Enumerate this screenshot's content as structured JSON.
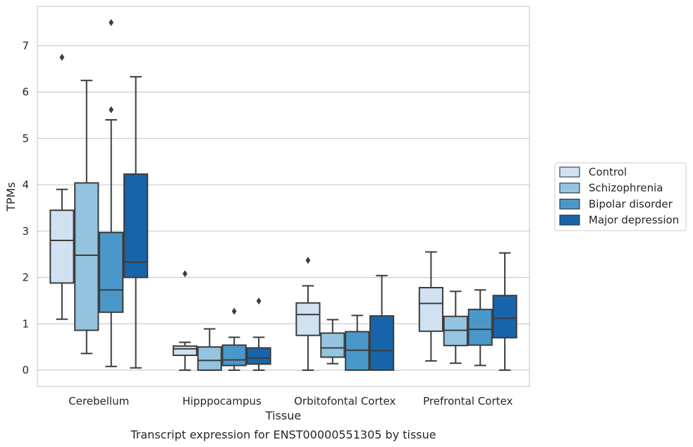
{
  "caption": "Transcript expression for ENST00000551305 by tissue",
  "chart_data": {
    "type": "boxplot",
    "xlabel": "Tissue",
    "ylabel": "TPMs",
    "ylim": [
      -0.35,
      7.85
    ],
    "yticks": [
      0,
      1,
      2,
      3,
      4,
      5,
      6,
      7
    ],
    "grid": "horizontal",
    "legend_position": "right",
    "categories": [
      "Cerebellum",
      "Hipppocampus",
      "Orbitofontal Cortex",
      "Prefrontal Cortex"
    ],
    "series": [
      {
        "name": "Control",
        "color": "#d0e1f2",
        "boxes": [
          {
            "whisker_low": 1.1,
            "q1": 1.88,
            "median": 2.8,
            "q3": 3.45,
            "whisker_high": 3.9,
            "outliers": [
              6.75
            ]
          },
          {
            "whisker_low": 0.0,
            "q1": 0.32,
            "median": 0.46,
            "q3": 0.52,
            "whisker_high": 0.6,
            "outliers": [
              2.08
            ]
          },
          {
            "whisker_low": 0.0,
            "q1": 0.75,
            "median": 1.2,
            "q3": 1.45,
            "whisker_high": 1.82,
            "outliers": [
              2.37
            ]
          },
          {
            "whisker_low": 0.2,
            "q1": 0.84,
            "median": 1.44,
            "q3": 1.78,
            "whisker_high": 2.55,
            "outliers": []
          }
        ]
      },
      {
        "name": "Schizophrenia",
        "color": "#94c4df",
        "boxes": [
          {
            "whisker_low": 0.36,
            "q1": 0.86,
            "median": 2.48,
            "q3": 4.04,
            "whisker_high": 6.25,
            "outliers": []
          },
          {
            "whisker_low": 0.0,
            "q1": 0.0,
            "median": 0.21,
            "q3": 0.5,
            "whisker_high": 0.89,
            "outliers": []
          },
          {
            "whisker_low": 0.14,
            "q1": 0.28,
            "median": 0.48,
            "q3": 0.8,
            "whisker_high": 1.09,
            "outliers": []
          },
          {
            "whisker_low": 0.15,
            "q1": 0.53,
            "median": 0.86,
            "q3": 1.16,
            "whisker_high": 1.7,
            "outliers": []
          }
        ]
      },
      {
        "name": "Bipolar disorder",
        "color": "#4a98c9",
        "boxes": [
          {
            "whisker_low": 0.08,
            "q1": 1.25,
            "median": 1.73,
            "q3": 2.97,
            "whisker_high": 5.4,
            "outliers": [
              5.62,
              7.5
            ]
          },
          {
            "whisker_low": 0.0,
            "q1": 0.1,
            "median": 0.22,
            "q3": 0.54,
            "whisker_high": 0.71,
            "outliers": [
              1.27
            ]
          },
          {
            "whisker_low": 0.0,
            "q1": 0.0,
            "median": 0.43,
            "q3": 0.83,
            "whisker_high": 1.18,
            "outliers": []
          },
          {
            "whisker_low": 0.1,
            "q1": 0.54,
            "median": 0.88,
            "q3": 1.31,
            "whisker_high": 1.73,
            "outliers": []
          }
        ]
      },
      {
        "name": "Major depression",
        "color": "#1764ab",
        "boxes": [
          {
            "whisker_low": 0.05,
            "q1": 2.0,
            "median": 2.33,
            "q3": 4.23,
            "whisker_high": 6.33,
            "outliers": []
          },
          {
            "whisker_low": 0.0,
            "q1": 0.13,
            "median": 0.26,
            "q3": 0.48,
            "whisker_high": 0.71,
            "outliers": [
              1.49
            ]
          },
          {
            "whisker_low": 0.0,
            "q1": 0.0,
            "median": 0.42,
            "q3": 1.17,
            "whisker_high": 2.04,
            "outliers": []
          },
          {
            "whisker_low": 0.0,
            "q1": 0.7,
            "median": 1.12,
            "q3": 1.61,
            "whisker_high": 2.53,
            "outliers": []
          }
        ]
      }
    ]
  }
}
